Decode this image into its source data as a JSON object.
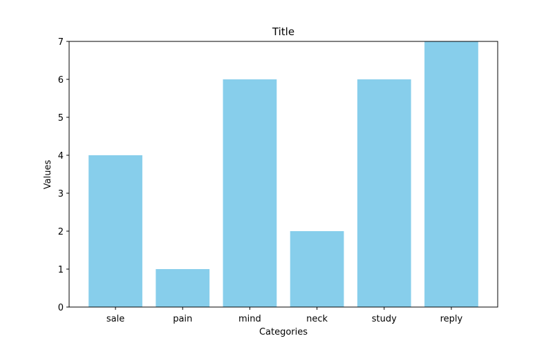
{
  "chart_data": {
    "type": "bar",
    "title": "Title",
    "xlabel": "Categories",
    "ylabel": "Values",
    "categories": [
      "sale",
      "pain",
      "mind",
      "neck",
      "study",
      "reply"
    ],
    "values": [
      4,
      1,
      6,
      2,
      6,
      7
    ],
    "ylim": [
      0,
      7
    ],
    "yticks": [
      0,
      1,
      2,
      3,
      4,
      5,
      6,
      7
    ],
    "grid": false,
    "bar_color": "#87CEEB"
  }
}
